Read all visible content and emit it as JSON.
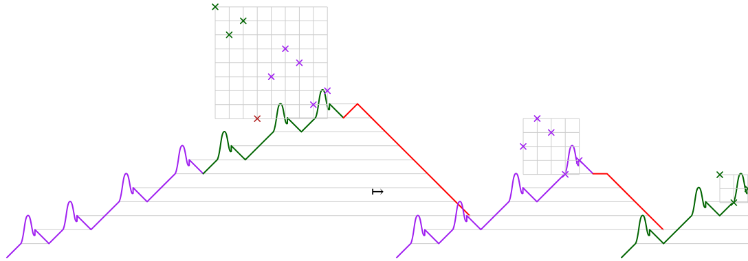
{
  "maps_to_symbol": "↦",
  "colors": {
    "purple": "#a020f0",
    "green": "#006400",
    "red": "#ff0000",
    "dark_red": "#b22222",
    "grid": "#cccccc"
  },
  "panels": [
    {
      "id": "left",
      "grid": {
        "size": 8,
        "marks": [
          {
            "col": 0,
            "row": 0,
            "color": "green"
          },
          {
            "col": 1,
            "row": 2,
            "color": "green"
          },
          {
            "col": 2,
            "row": 1,
            "color": "green"
          },
          {
            "col": 5,
            "row": 3,
            "color": "purple"
          },
          {
            "col": 6,
            "row": 4,
            "color": "purple"
          },
          {
            "col": 4,
            "row": 5,
            "color": "purple"
          },
          {
            "col": 8,
            "row": 6,
            "color": "purple"
          },
          {
            "col": 7,
            "row": 7,
            "color": "purple"
          },
          {
            "col": 3,
            "row": 8,
            "color": "dark_red"
          }
        ]
      },
      "segments": [
        {
          "color": "purple",
          "moves": [
            "up",
            "bump",
            "down",
            "up",
            "bump",
            "down",
            "up",
            "up",
            "bump",
            "down",
            "up",
            "up",
            "bump",
            "down"
          ]
        },
        {
          "color": "green",
          "moves": [
            "up",
            "bump",
            "down",
            "up",
            "up",
            "bump",
            "down",
            "up",
            "bump",
            "down"
          ]
        },
        {
          "color": "red",
          "moves": [
            "up",
            "down",
            "down",
            "down",
            "down",
            "down",
            "down",
            "down",
            "down"
          ]
        }
      ]
    },
    {
      "id": "middle",
      "grid": {
        "size": 4,
        "marks": [
          {
            "col": 1,
            "row": 0,
            "color": "purple"
          },
          {
            "col": 2,
            "row": 1,
            "color": "purple"
          },
          {
            "col": 0,
            "row": 2,
            "color": "purple"
          },
          {
            "col": 4,
            "row": 3,
            "color": "purple"
          },
          {
            "col": 3,
            "row": 4,
            "color": "purple"
          }
        ]
      },
      "segments": [
        {
          "color": "purple",
          "moves": [
            "up",
            "bump",
            "down",
            "up",
            "bump",
            "down",
            "up",
            "up",
            "bump",
            "down",
            "up",
            "up",
            "bump",
            "down"
          ]
        },
        {
          "color": "red",
          "moves": [
            "flat",
            "down",
            "down",
            "down",
            "down"
          ]
        }
      ]
    },
    {
      "id": "right",
      "grid": {
        "size": 2,
        "marks": [
          {
            "col": 0,
            "row": 0,
            "color": "green"
          },
          {
            "col": 1,
            "row": 2,
            "color": "green"
          },
          {
            "col": 2,
            "row": 1,
            "color": "green"
          }
        ]
      },
      "segments": [
        {
          "color": "green",
          "moves": [
            "up",
            "bump",
            "down",
            "up",
            "up",
            "bump",
            "down",
            "up",
            "bump",
            "down"
          ]
        },
        {
          "color": "red",
          "moves": [
            "flat",
            "down",
            "down",
            "down"
          ]
        }
      ]
    }
  ]
}
